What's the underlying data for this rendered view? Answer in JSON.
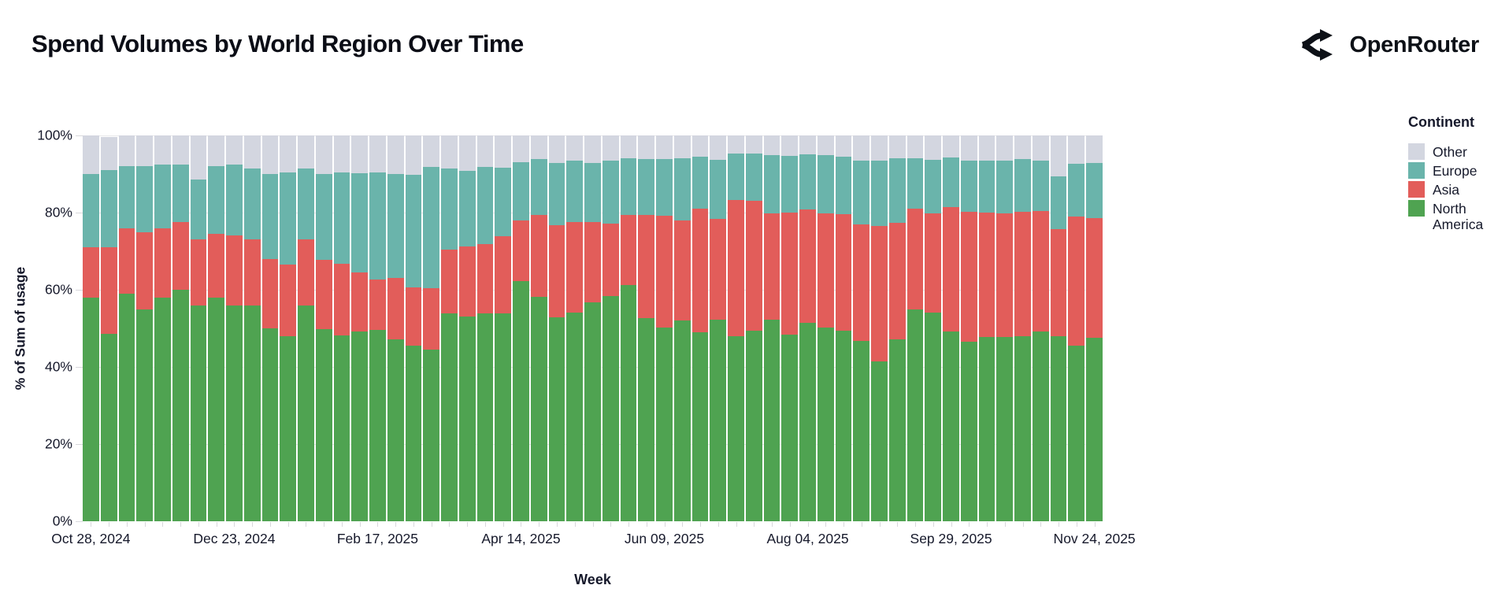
{
  "header": {
    "title": "Spend Volumes by World Region Over Time",
    "brand": "OpenRouter"
  },
  "chart_data": {
    "type": "bar",
    "variant": "stacked-100-percent",
    "title": "Spend Volumes by World Region Over Time",
    "xlabel": "Week",
    "ylabel": "% of Sum of usage",
    "ylim": [
      0,
      100
    ],
    "grid": true,
    "y_tick_labels": [
      "0%",
      "20%",
      "40%",
      "60%",
      "80%",
      "100%"
    ],
    "x_tick_labels": [
      "Oct 28, 2024",
      "Dec 23, 2024",
      "Feb 17, 2025",
      "Apr 14, 2025",
      "Jun 09, 2025",
      "Aug 04, 2025",
      "Sep 29, 2025",
      "Nov 24, 2025"
    ],
    "x_tick_bar_indices": [
      0,
      8,
      16,
      24,
      32,
      40,
      48,
      56
    ],
    "bar_count": 57,
    "legend": {
      "title": "Continent",
      "position": "right",
      "entries": [
        {
          "label": "Other",
          "color": "#D3D6E0"
        },
        {
          "label": "Europe",
          "color": "#6AB4AB"
        },
        {
          "label": "Asia",
          "color": "#E25D5A"
        },
        {
          "label": "North America",
          "color": "#4FA351"
        }
      ]
    },
    "series": [
      {
        "name": "North America",
        "color": "#4FA351",
        "values": [
          58,
          48.5,
          59,
          55,
          58,
          60,
          56,
          58,
          56,
          56,
          50,
          48,
          56,
          49.7,
          48.2,
          49.2,
          49.6,
          47.1,
          45.5,
          44.5,
          53.8,
          53.1,
          53.8,
          53.8,
          62.3,
          58.2,
          52.8,
          54,
          56.7,
          58.4,
          61.3,
          52.6,
          50.3,
          52,
          49,
          52.3,
          48,
          49.4,
          52.3,
          48.4,
          51.4,
          50.3,
          49.4,
          46.8,
          41.5,
          47.2,
          54.9,
          54.1,
          49.2,
          46.5,
          47.7,
          47.7,
          48,
          49.2,
          48,
          45.5,
          47.5
        ]
      },
      {
        "name": "Asia",
        "color": "#E25D5A",
        "values": [
          13,
          22.5,
          17,
          20,
          18,
          17.5,
          17,
          16.5,
          18,
          17,
          18,
          18.5,
          17,
          18.1,
          18.5,
          15.2,
          13.1,
          15.9,
          15.1,
          16,
          16.7,
          18.2,
          18,
          20.1,
          15.7,
          21.1,
          24,
          23.6,
          20.8,
          18.7,
          18,
          26.7,
          28.8,
          26,
          32,
          26.1,
          35.2,
          33.7,
          27.5,
          31.6,
          29.4,
          29.5,
          30.1,
          30.2,
          35,
          30.2,
          26.1,
          25.7,
          32.2,
          33.7,
          32.3,
          32,
          32.2,
          31.3,
          27.7,
          33.5,
          31
        ]
      },
      {
        "name": "Europe",
        "color": "#6AB4AB",
        "values": [
          19,
          20,
          16,
          17,
          16.5,
          15,
          15.5,
          17.5,
          18.5,
          18.5,
          22,
          24,
          18.5,
          22.2,
          23.7,
          25.8,
          27.8,
          27,
          29.3,
          31.3,
          20.9,
          19.6,
          20.1,
          17.8,
          15.1,
          14.6,
          16.1,
          15.8,
          15.4,
          16.3,
          14.8,
          14.5,
          14.7,
          16,
          13.5,
          15.2,
          12.2,
          12.3,
          15,
          14.8,
          14.4,
          15,
          15,
          16.5,
          17,
          16.6,
          13.1,
          13.8,
          12.9,
          13.3,
          13.4,
          13.8,
          13.7,
          13,
          13.6,
          13.7,
          14.3
        ]
      },
      {
        "name": "Other",
        "color": "#D3D6E0",
        "values": [
          10,
          8.5,
          8,
          8,
          7.5,
          7.5,
          11.5,
          8,
          7.5,
          8.5,
          10,
          9.5,
          8.5,
          10,
          9.6,
          9.8,
          9.5,
          10,
          10.1,
          8.2,
          8.6,
          9.1,
          8.1,
          8.3,
          6.9,
          6.1,
          7.1,
          6.6,
          7.1,
          6.6,
          5.9,
          6.2,
          6.2,
          6,
          5.5,
          6.4,
          4.6,
          4.6,
          5.2,
          5.2,
          4.8,
          5.2,
          5.5,
          6.5,
          6.5,
          6,
          5.9,
          6.4,
          5.7,
          6.5,
          6.6,
          6.5,
          6.1,
          6.5,
          10.7,
          7.3,
          7.2
        ]
      }
    ]
  }
}
